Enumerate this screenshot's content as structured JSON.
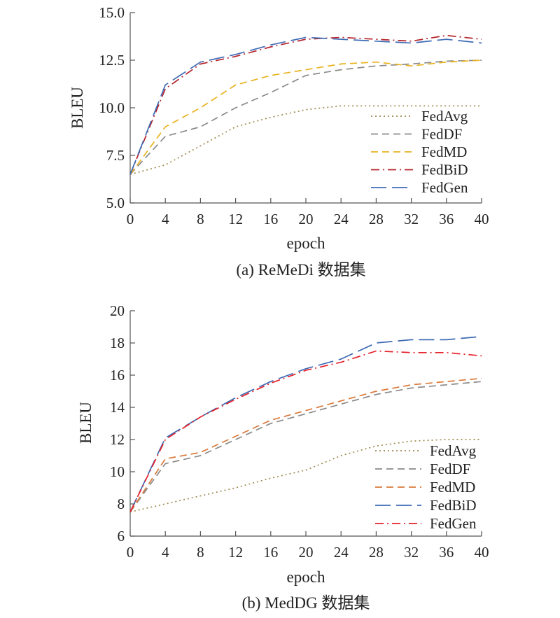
{
  "chart_data": [
    {
      "type": "line",
      "caption": "(a) ReMeDi 数据集",
      "xlabel": "epoch",
      "ylabel": "BLEU",
      "x": [
        0,
        4,
        8,
        12,
        16,
        20,
        24,
        28,
        32,
        36,
        40
      ],
      "xticks": [
        "0",
        "4",
        "8",
        "12",
        "16",
        "20",
        "24",
        "28",
        "32",
        "36",
        "40"
      ],
      "yticks": [
        "5.0",
        "7.5",
        "10.0",
        "12.5",
        "15.0"
      ],
      "ylim": [
        5.0,
        15.0
      ],
      "xlim": [
        0,
        40
      ],
      "grid": false,
      "legend_position": "right",
      "series": [
        {
          "name": "FedAvg",
          "color": "#a08a4e",
          "dash": "dotted",
          "values": [
            6.5,
            7.0,
            8.0,
            9.0,
            9.5,
            9.9,
            10.1,
            10.1,
            10.1,
            10.1,
            10.1
          ]
        },
        {
          "name": "FedDF",
          "color": "#8a8a8a",
          "dash": "dashed",
          "values": [
            6.5,
            8.5,
            9.0,
            10.0,
            10.8,
            11.7,
            12.0,
            12.2,
            12.3,
            12.45,
            12.5
          ]
        },
        {
          "name": "FedMD",
          "color": "#e8b21e",
          "dash": "dashed",
          "values": [
            6.5,
            9.0,
            10.0,
            11.2,
            11.7,
            12.0,
            12.3,
            12.4,
            12.2,
            12.4,
            12.5
          ]
        },
        {
          "name": "FedBiD",
          "color": "#b4232a",
          "dash": "dashdot",
          "values": [
            6.5,
            11.0,
            12.3,
            12.7,
            13.2,
            13.6,
            13.7,
            13.6,
            13.5,
            13.8,
            13.6
          ]
        },
        {
          "name": "FedGen",
          "color": "#3e6bb4",
          "dash": "longdash",
          "values": [
            6.5,
            11.2,
            12.4,
            12.8,
            13.3,
            13.7,
            13.6,
            13.5,
            13.4,
            13.6,
            13.4
          ]
        }
      ]
    },
    {
      "type": "line",
      "caption": "(b) MedDG 数据集",
      "xlabel": "epoch",
      "ylabel": "BLEU",
      "x": [
        0,
        4,
        8,
        12,
        16,
        20,
        24,
        28,
        32,
        36,
        40
      ],
      "xticks": [
        "0",
        "4",
        "8",
        "12",
        "16",
        "20",
        "24",
        "28",
        "32",
        "36",
        "40"
      ],
      "yticks": [
        "6",
        "8",
        "10",
        "12",
        "14",
        "16",
        "18",
        "20"
      ],
      "ylim": [
        6,
        20
      ],
      "xlim": [
        0,
        40
      ],
      "grid": false,
      "legend_position": "bottom-right",
      "series": [
        {
          "name": "FedAvg",
          "color": "#a08a4e",
          "dash": "dotted",
          "values": [
            7.5,
            8.0,
            8.5,
            9.0,
            9.6,
            10.1,
            11.0,
            11.6,
            11.9,
            12.0,
            12.0
          ]
        },
        {
          "name": "FedDF",
          "color": "#8a8a8a",
          "dash": "dashed",
          "values": [
            7.5,
            10.5,
            11.0,
            12.0,
            13.0,
            13.6,
            14.2,
            14.8,
            15.2,
            15.4,
            15.6
          ]
        },
        {
          "name": "FedMD",
          "color": "#d9793a",
          "dash": "dashed",
          "values": [
            7.5,
            10.8,
            11.2,
            12.2,
            13.2,
            13.8,
            14.4,
            15.0,
            15.4,
            15.6,
            15.8
          ]
        },
        {
          "name": "FedBiD",
          "color": "#3e6bb4",
          "dash": "longdash",
          "values": [
            7.5,
            12.1,
            13.4,
            14.6,
            15.6,
            16.4,
            17.0,
            18.0,
            18.2,
            18.2,
            18.4
          ]
        },
        {
          "name": "FedGen",
          "color": "#e5202a",
          "dash": "dashdot",
          "values": [
            7.5,
            12.0,
            13.4,
            14.5,
            15.5,
            16.3,
            16.8,
            17.5,
            17.4,
            17.4,
            17.2
          ]
        }
      ]
    }
  ]
}
